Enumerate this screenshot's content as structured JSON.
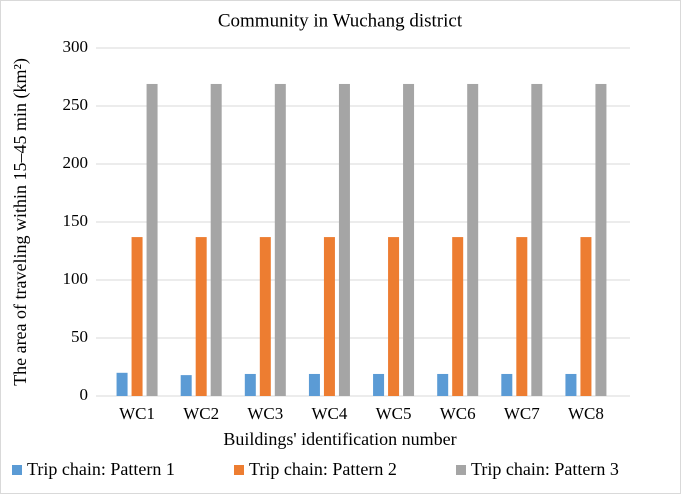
{
  "chart_data": {
    "type": "bar",
    "title": "Community in Wuchang district",
    "y_label": "The area of traveling within 15–45 min (km²)",
    "x_label": "Buildings' identification number",
    "categories": [
      "WC1",
      "WC2",
      "WC3",
      "WC4",
      "WC5",
      "WC6",
      "WC7",
      "WC8"
    ],
    "series": [
      {
        "name": "Trip chain: Pattern 1",
        "color": "#5b9bd5",
        "values": [
          20,
          18,
          19,
          19,
          19,
          19,
          19,
          19
        ]
      },
      {
        "name": "Trip chain: Pattern 2",
        "color": "#ed7d31",
        "values": [
          137,
          137,
          137,
          137,
          137,
          137,
          137,
          137
        ]
      },
      {
        "name": "Trip chain: Pattern 3",
        "color": "#a5a5a5",
        "values": [
          269,
          269,
          269,
          269,
          269,
          269,
          269,
          269
        ]
      }
    ],
    "ylim": [
      0,
      300
    ],
    "yticks": [
      0,
      50,
      100,
      150,
      200,
      250,
      300
    ],
    "grid": true,
    "legend": "bottom"
  }
}
